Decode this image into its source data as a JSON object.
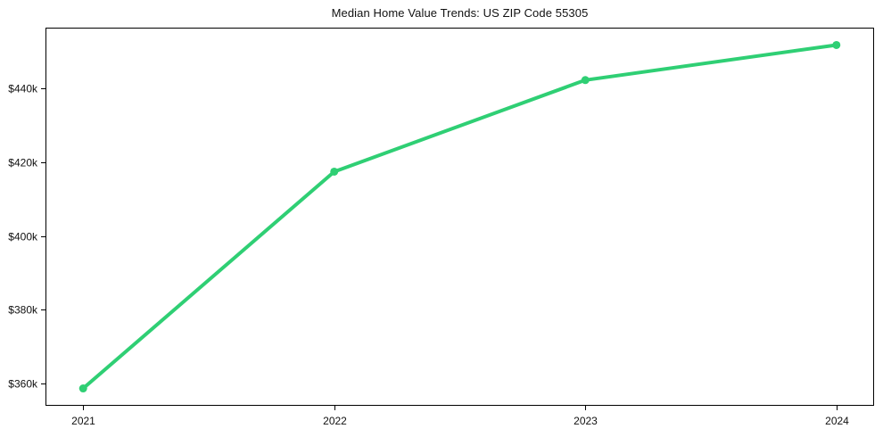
{
  "figure": {
    "background": "#ffffff"
  },
  "chart_data": {
    "type": "line",
    "title": "Median Home Value Trends: US ZIP Code 55305",
    "categories": [
      "2021",
      "2022",
      "2023",
      "2024"
    ],
    "values": [
      358700,
      417400,
      442200,
      451700
    ],
    "xlabel": "",
    "ylabel": "",
    "y_ticks": [
      {
        "value": 360000,
        "label": "$360k"
      },
      {
        "value": 380000,
        "label": "$380k"
      },
      {
        "value": 400000,
        "label": "$400k"
      },
      {
        "value": 420000,
        "label": "$420k"
      },
      {
        "value": 440000,
        "label": "$440k"
      }
    ],
    "ylim": [
      354000,
      456400
    ],
    "x_margin": 0.15,
    "grid": false,
    "legend": "none",
    "line_color": "#2fcf74",
    "line_width": 4,
    "marker": "circle",
    "marker_radius": 4.5,
    "axis_color": "#000000",
    "text_color": "#111111"
  }
}
